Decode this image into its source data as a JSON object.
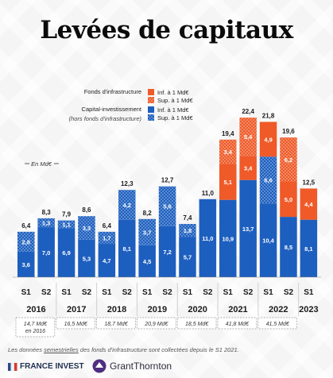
{
  "title": "Levées de capitaux",
  "legend": {
    "groups": [
      {
        "name": "Fonds d'infrastructure",
        "note": "",
        "items": [
          {
            "label": "Inf. à 1 Md€",
            "kind": "orange-solid"
          },
          {
            "label": "Sup. à 1 Md€",
            "kind": "orange-pattern"
          }
        ]
      },
      {
        "name": "Capital-investissement",
        "note": "(hors fonds d'infrastructure)",
        "items": [
          {
            "label": "Inf. à 1 Md€",
            "kind": "blue-solid"
          },
          {
            "label": "Sup. à 1 Md€",
            "kind": "blue-pattern"
          }
        ]
      }
    ]
  },
  "unit_label": "En Md€",
  "colors": {
    "blue": "#1d5fbf",
    "orange": "#ef5a28",
    "text": "#1a1a1a",
    "divider": "#cfcfcf"
  },
  "chart_data": {
    "type": "bar",
    "stacked": true,
    "unit": "Md€",
    "categories": [
      "S1 2016",
      "S2 2016",
      "S1 2017",
      "S2 2017",
      "S1 2018",
      "S2 2018",
      "S1 2019",
      "S2 2019",
      "S1 2020",
      "S2 2020",
      "S1 2021",
      "S2 2021",
      "S1 2022",
      "S2 2022",
      "S1 2023"
    ],
    "semesters": [
      "S1",
      "S2",
      "S1",
      "S2",
      "S1",
      "S2",
      "S1",
      "S2",
      "S1",
      "S2",
      "S1",
      "S2",
      "S1",
      "S2",
      "S1"
    ],
    "years": [
      "2016",
      "2017",
      "2018",
      "2019",
      "2020",
      "2021",
      "2022",
      "2023"
    ],
    "infra_bottom_note": [
      "14,7 Md€\nen 2016",
      "16,5 Md€",
      "18,7 Md€",
      "20,9 Md€",
      "18,5 Md€",
      "41,8 Md€",
      "41,5 Md€"
    ],
    "series": [
      {
        "name": "Capital-investissement — Inf. à 1 Md€",
        "pattern": false,
        "color_key": "blue",
        "values": [
          3.6,
          7.0,
          6.9,
          5.3,
          4.7,
          8.1,
          4.5,
          7.2,
          5.7,
          11.0,
          10.9,
          13.7,
          10.4,
          8.5,
          8.1
        ]
      },
      {
        "name": "Capital-investissement — Sup. à 1 Md€",
        "pattern": true,
        "color_key": "blue",
        "values": [
          2.8,
          1.3,
          1.1,
          3.3,
          1.7,
          4.2,
          3.7,
          5.6,
          1.8,
          0,
          0,
          0,
          6.6,
          0,
          0
        ]
      },
      {
        "name": "Fonds d'infrastructure — Inf. à 1 Md€",
        "pattern": false,
        "color_key": "orange",
        "values": [
          0,
          0,
          0,
          0,
          0,
          0,
          0,
          0,
          0,
          0,
          5.1,
          3.4,
          4.9,
          5.0,
          4.4
        ]
      },
      {
        "name": "Fonds d'infrastructure — Sup. à 1 Md€",
        "pattern": true,
        "color_key": "orange",
        "values": [
          0,
          0,
          0,
          0,
          0,
          0,
          0,
          0,
          0,
          0,
          3.4,
          5.4,
          0,
          6.2,
          0
        ]
      }
    ],
    "totals": [
      "6,4",
      "8,3",
      "7,9",
      "8,6",
      "6,4",
      "12,3",
      "8,2",
      "12,7",
      "7,4",
      "11,0",
      "19,4",
      "22,4",
      "21,8",
      "19,6",
      "12,5"
    ],
    "segment_labels": [
      [
        "3,6",
        "2,8",
        "",
        ""
      ],
      [
        "7,0",
        "1,3",
        "",
        ""
      ],
      [
        "6,9",
        "1,1",
        "",
        ""
      ],
      [
        "5,3",
        "3,3",
        "",
        ""
      ],
      [
        "4,7",
        "1,7",
        "",
        ""
      ],
      [
        "8,1",
        "4,2",
        "",
        ""
      ],
      [
        "4,5",
        "3,7",
        "",
        ""
      ],
      [
        "7,2",
        "5,6",
        "",
        ""
      ],
      [
        "5,7",
        "1,8",
        "",
        ""
      ],
      [
        "11,0",
        "",
        "",
        ""
      ],
      [
        "10,9",
        "",
        "5,1",
        "3,4"
      ],
      [
        "13,7",
        "",
        "3,4",
        "5,4"
      ],
      [
        "10,4",
        "6,6",
        "4,9",
        ""
      ],
      [
        "8,5",
        "",
        "5,0",
        "6,2"
      ],
      [
        "8,1",
        "",
        "4,4",
        ""
      ]
    ],
    "ylim": [
      0,
      22.4
    ]
  },
  "footnote": {
    "prefix": "Les données ",
    "underlined": "semestrielles",
    "suffix": " des fonds d'infrastructure sont collectées depuis le S1 2021."
  },
  "logos": {
    "france_invest": "FRANCE INVEST",
    "grant_thornton": "GrantThornton"
  }
}
